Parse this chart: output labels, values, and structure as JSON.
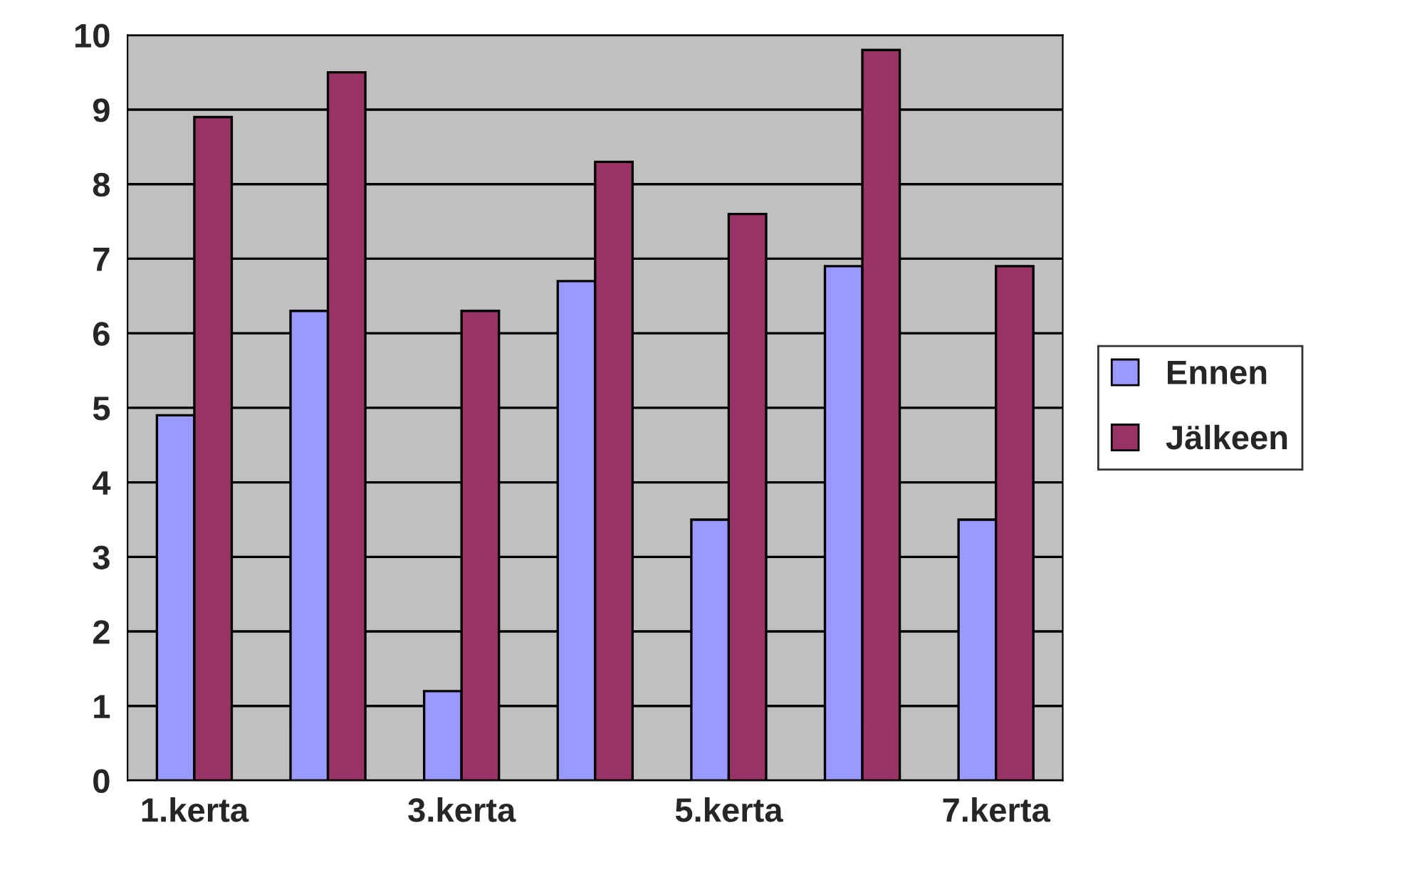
{
  "chart_data": {
    "type": "bar",
    "categories": [
      "1.kerta",
      null,
      "3.kerta",
      null,
      "5.kerta",
      null,
      "7.kerta"
    ],
    "series": [
      {
        "name": "Ennen",
        "color": "#9999ff",
        "values": [
          4.9,
          6.3,
          1.2,
          6.7,
          3.5,
          6.9,
          3.5
        ]
      },
      {
        "name": "Jälkeen",
        "color": "#993366",
        "values": [
          8.9,
          9.5,
          6.3,
          8.3,
          7.6,
          9.8,
          6.9
        ]
      }
    ],
    "ylim": [
      0,
      10
    ],
    "yticks": [
      0,
      1,
      2,
      3,
      4,
      5,
      6,
      7,
      8,
      9,
      10
    ],
    "grid": "y",
    "legend": "right"
  }
}
